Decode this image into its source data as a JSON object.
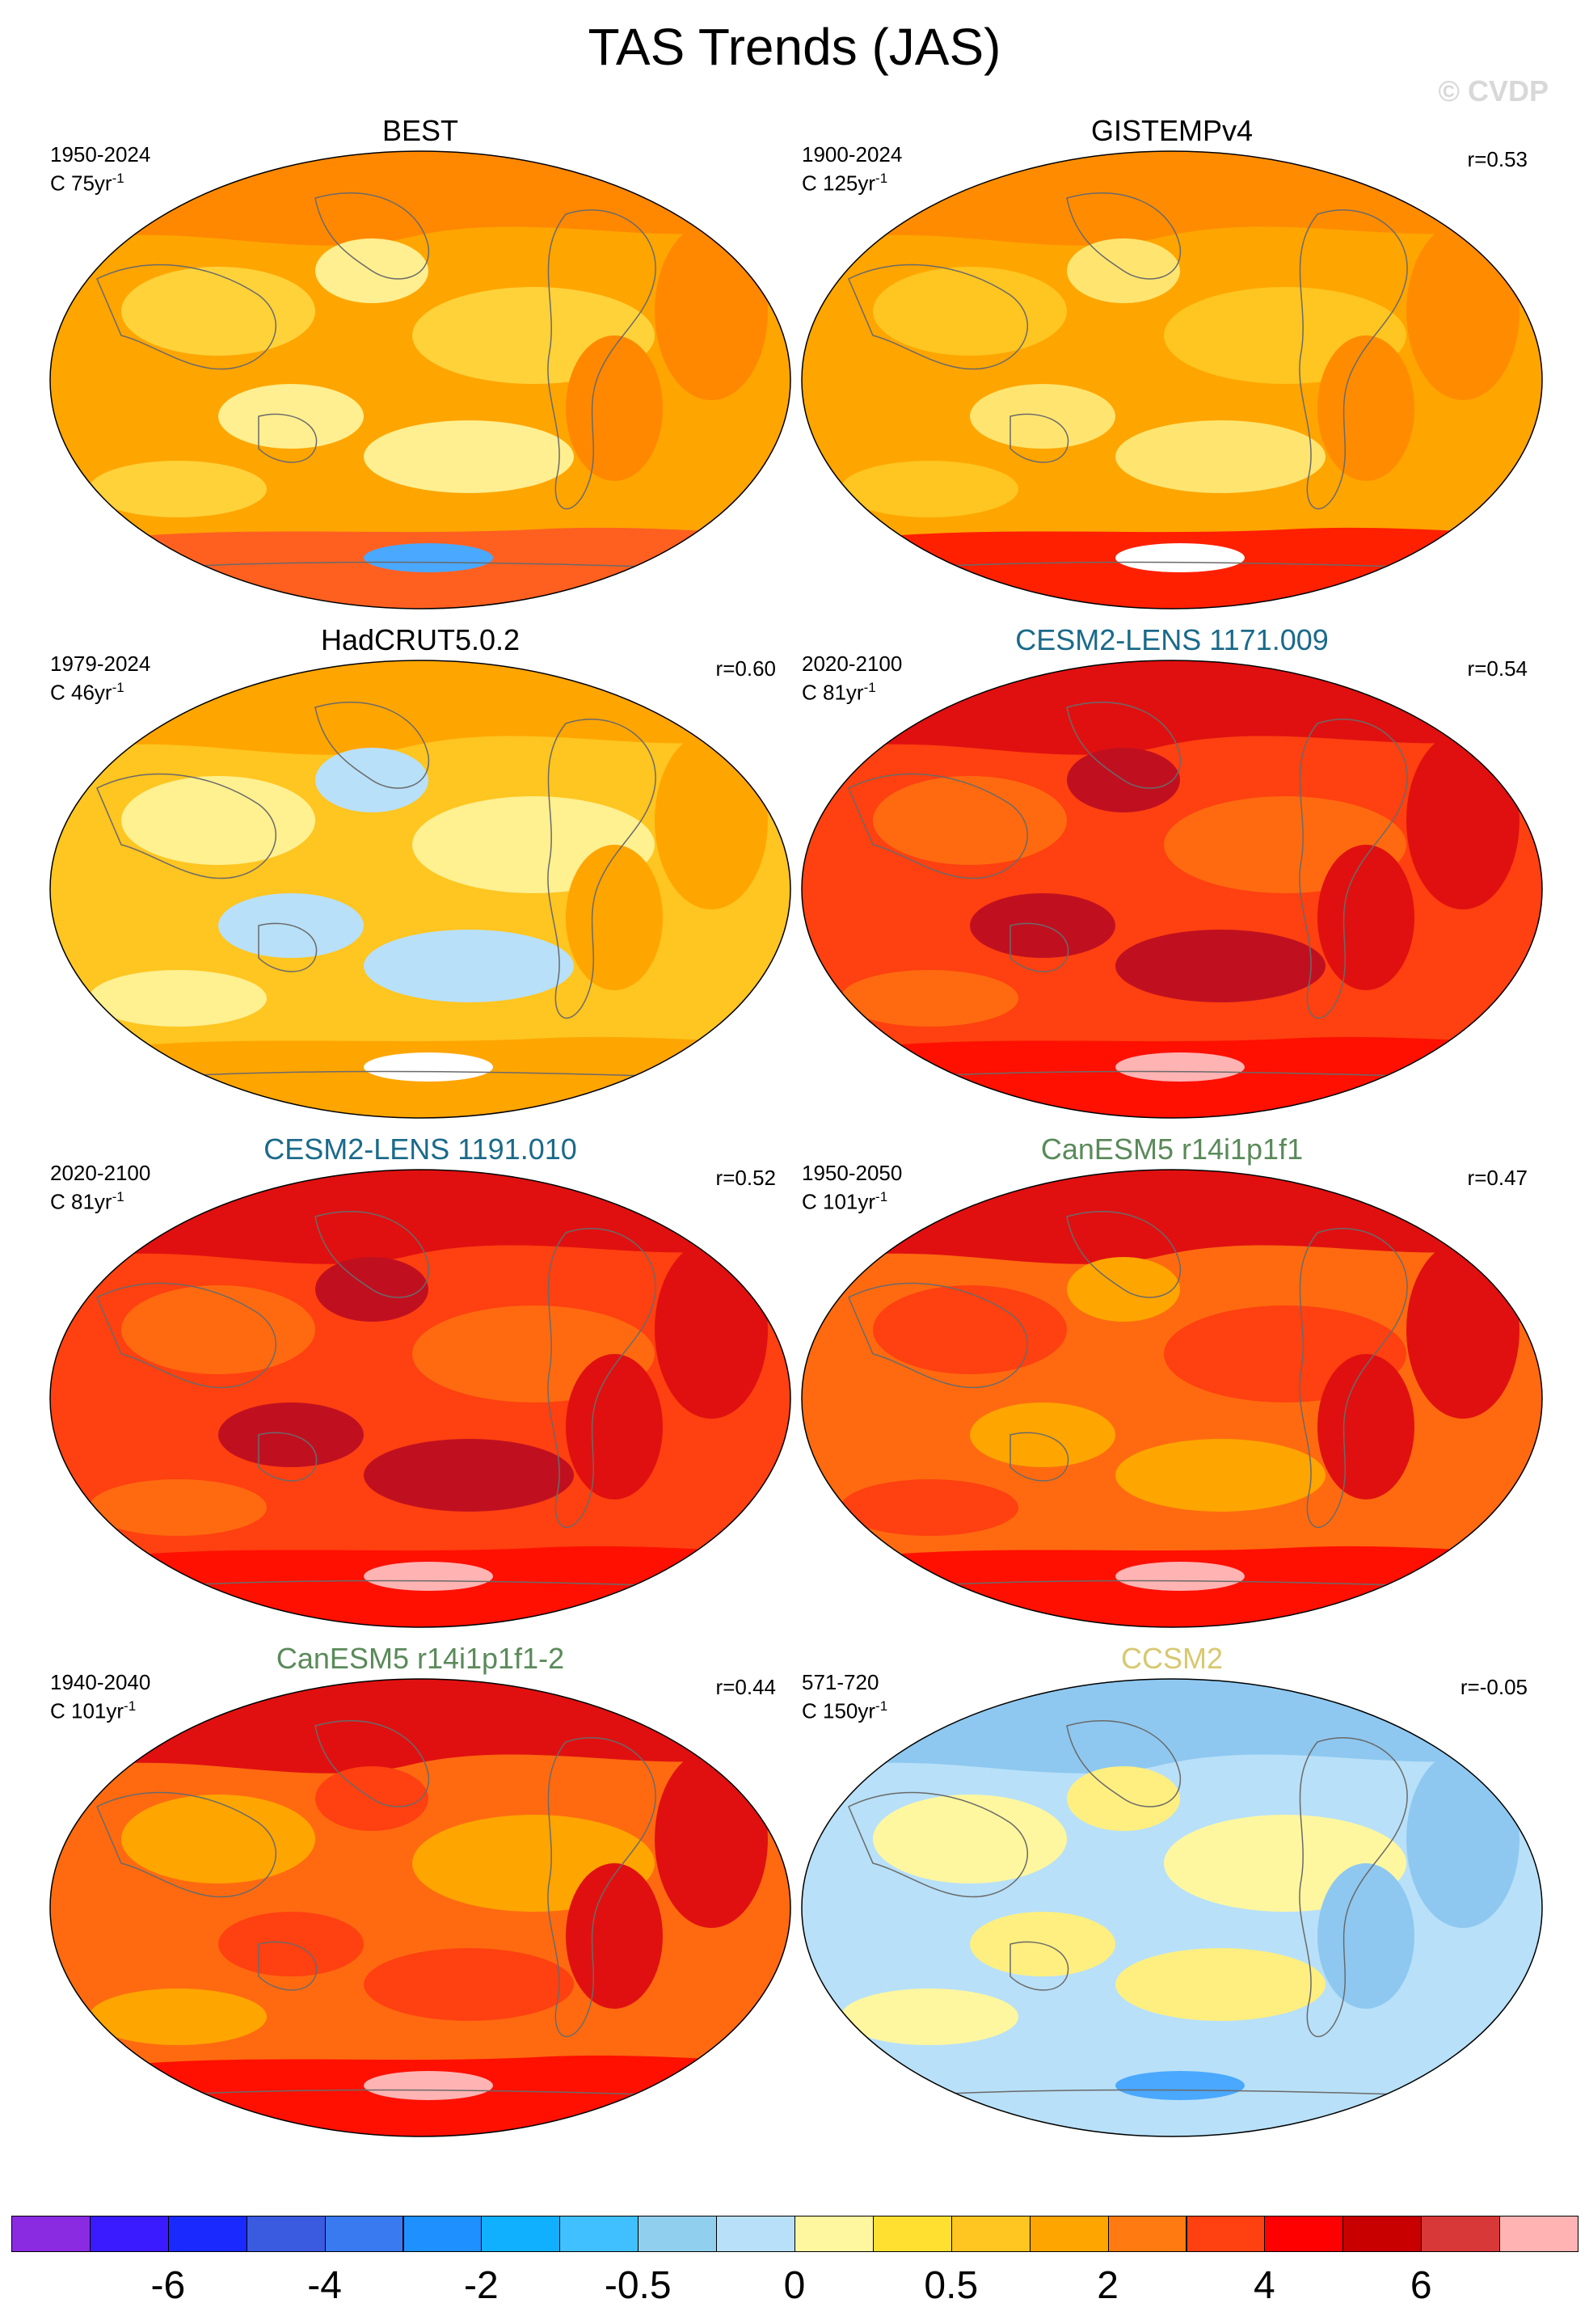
{
  "title": "TAS Trends (JAS)",
  "copyright": "© CVDP",
  "units_label": "C",
  "panels": [
    {
      "title": "BEST",
      "title_color": "#000000",
      "period": "1950-2024",
      "units": "75yr",
      "corr": "",
      "colors": {
        "base": "#ffa500",
        "a": "#ffd23a",
        "b": "#ff8800",
        "c": "#ffef90",
        "south": "#ff6020",
        "ice": "#4aa8ff"
      }
    },
    {
      "title": "GISTEMPv4",
      "title_color": "#000000",
      "period": "1900-2024",
      "units": "125yr",
      "corr": "r=0.53",
      "colors": {
        "base": "#ffa500",
        "a": "#ffc520",
        "b": "#ff8c00",
        "c": "#ffe570",
        "south": "#ff2000",
        "ice": "#ffffff"
      }
    },
    {
      "title": "HadCRUT5.0.2",
      "title_color": "#000000",
      "period": "1979-2024",
      "units": "46yr",
      "corr": "r=0.60",
      "colors": {
        "base": "#ffc520",
        "a": "#fff090",
        "b": "#ffa500",
        "c": "#b8e0f8",
        "south": "#ffa500",
        "ice": "#ffffff"
      }
    },
    {
      "title": "CESM2-LENS 1171.009",
      "title_color": "#1a6a8a",
      "period": "2020-2100",
      "units": "81yr",
      "corr": "r=0.54",
      "colors": {
        "base": "#ff4010",
        "a": "#ff6a10",
        "b": "#e01010",
        "c": "#c01020",
        "south": "#ff1000",
        "ice": "#ffb3b3"
      }
    },
    {
      "title": "CESM2-LENS 1191.010",
      "title_color": "#1a6a8a",
      "period": "2020-2100",
      "units": "81yr",
      "corr": "r=0.52",
      "colors": {
        "base": "#ff4010",
        "a": "#ff6a10",
        "b": "#e01010",
        "c": "#c01020",
        "south": "#ff1000",
        "ice": "#ffb3b3"
      }
    },
    {
      "title": "CanESM5 r14i1p1f1",
      "title_color": "#5a8a5a",
      "period": "1950-2050",
      "units": "101yr",
      "corr": "r=0.47",
      "colors": {
        "base": "#ff6a10",
        "a": "#ff4010",
        "b": "#e01010",
        "c": "#ffa500",
        "south": "#ff1000",
        "ice": "#ffb3b3"
      }
    },
    {
      "title": "CanESM5 r14i1p1f1-2",
      "title_color": "#5a8a5a",
      "period": "1940-2040",
      "units": "101yr",
      "corr": "r=0.44",
      "colors": {
        "base": "#ff6a10",
        "a": "#ffa500",
        "b": "#e01010",
        "c": "#ff4010",
        "south": "#ff1000",
        "ice": "#ffb3b3"
      }
    },
    {
      "title": "CCSM2",
      "title_color": "#d8c870",
      "period": "571-720",
      "units": "150yr",
      "corr": "r=-0.05",
      "colors": {
        "base": "#b8e0f8",
        "a": "#fff7a0",
        "b": "#8ec8f0",
        "c": "#ffef80",
        "south": "#b8e0f8",
        "ice": "#4aa8ff"
      }
    }
  ],
  "colorbar": {
    "colors": [
      "#8a2be2",
      "#3a1aff",
      "#1a2aff",
      "#3a5ae0",
      "#3a7af0",
      "#1e90ff",
      "#10b0ff",
      "#40c0ff",
      "#90cfee",
      "#b8e0f8",
      "#fff7a0",
      "#ffe030",
      "#ffc520",
      "#ffa500",
      "#ff7a10",
      "#ff4010",
      "#ff0000",
      "#c80000",
      "#d83838",
      "#ffb3b3"
    ],
    "labels": [
      "-6",
      "-4",
      "-2",
      "-0.5",
      "0",
      "0.5",
      "2",
      "4",
      "6"
    ]
  }
}
